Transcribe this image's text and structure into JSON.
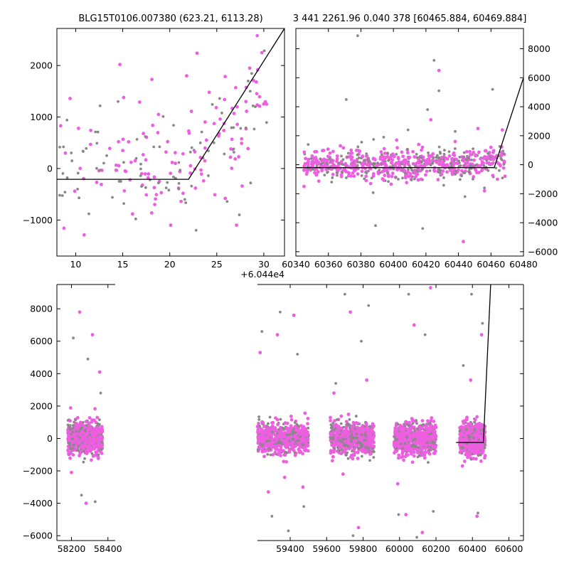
{
  "chart_data": [
    {
      "id": "top-left",
      "type": "scatter",
      "title": "BLG15T0106.007380 (623.21, 6113.28)",
      "xlim": [
        8,
        32.2
      ],
      "ylim": [
        -1700,
        2720
      ],
      "xticks": [
        "10",
        "15",
        "20",
        "25",
        "30"
      ],
      "xtick_values": [
        10,
        15,
        20,
        25,
        30
      ],
      "yticks": [
        "−1000",
        "0",
        "1000",
        "2000"
      ],
      "ytick_values": [
        -1000,
        0,
        1000,
        2000
      ],
      "x_offset_label": "+6.044e4",
      "series": [
        {
          "color": "#888888",
          "x": [
            8.3,
            8.7,
            9.1,
            9.6,
            10.2,
            10.8,
            11.4,
            12.1,
            12.6,
            13.3,
            13.9,
            14.5,
            15.1,
            16.9,
            17.4,
            17.9,
            18.3,
            18.8,
            19.3,
            19.9,
            20.4,
            21.1,
            21.6,
            22.2,
            22.8,
            23.4,
            24.1,
            24.7,
            25.3,
            26.1,
            26.8,
            27.4,
            28.1,
            28.6,
            29.1
          ],
          "y": [
            -520,
            420,
            -180,
            150,
            -400,
            330,
            -880,
            710,
            -30,
            250,
            -560,
            1300,
            120,
            -140,
            620,
            -220,
            420,
            -280,
            1010,
            -420,
            840,
            -30,
            -600,
            320,
            -1200,
            710,
            -140,
            500,
            1360,
            -640,
            380,
            -900,
            790,
            -280,
            1200
          ]
        },
        {
          "color": "#ee5ee0",
          "x": [
            8.4,
            8.9,
            9.4,
            9.9,
            10.3,
            10.9,
            11.6,
            14.7,
            15.1,
            16.8,
            17.2,
            17.7,
            18.1,
            18.4,
            18.8,
            19.1,
            19.6,
            20.1,
            20.6,
            21.2,
            21.8,
            22.3,
            22.9,
            23.6,
            24.2,
            24.8,
            25.2,
            25.9,
            26.5,
            27.1,
            27.7,
            28.1,
            28.5,
            28.9,
            29.3,
            29.8,
            30.3
          ],
          "y": [
            830,
            300,
            1360,
            -440,
            780,
            -1290,
            740,
            2020,
            1380,
            1290,
            680,
            -180,
            1730,
            -700,
            1050,
            -470,
            320,
            -1100,
            100,
            -640,
            1800,
            1110,
            2240,
            -240,
            1480,
            -510,
            630,
            -580,
            380,
            -1100,
            -340,
            1300,
            1950,
            1710,
            2580,
            2250,
            1250
          ]
        }
      ],
      "line": {
        "x": [
          8,
          22,
          32.2
        ],
        "y": [
          -210,
          -210,
          2720
        ]
      }
    },
    {
      "id": "top-right",
      "type": "scatter",
      "title": "3 441 2261.96 0.040 378 [60465.884, 60469.884]",
      "xlim": [
        60340,
        60480
      ],
      "ylim": [
        -6300,
        9400
      ],
      "xticks": [
        "60340",
        "60360",
        "60380",
        "60400",
        "60420",
        "60440",
        "60460",
        "60480"
      ],
      "xtick_values": [
        60340,
        60360,
        60380,
        60400,
        60420,
        60440,
        60460,
        60480
      ],
      "yticks": [
        "−6000",
        "−4000",
        "−2000",
        "0",
        "2000",
        "4000",
        "6000",
        "8000"
      ],
      "ytick_values": [
        -6000,
        -4000,
        -2000,
        0,
        2000,
        4000,
        6000,
        8000
      ],
      "series": [
        {
          "color": "#888888",
          "x": [
            60355,
            60362,
            60371,
            60378,
            60382,
            60389,
            60394,
            60403,
            60409,
            60418,
            60421,
            60425,
            60428,
            60431,
            60438,
            60444,
            60449,
            60456,
            60461
          ],
          "y": [
            400,
            -1200,
            4500,
            8900,
            300,
            -4200,
            1900,
            -1000,
            2400,
            -4400,
            3800,
            7200,
            5100,
            -900,
            2300,
            -2200,
            1100,
            -1600,
            5200
          ]
        },
        {
          "color": "#ee5ee0",
          "x": [
            60345,
            60350,
            60356,
            60361,
            60368,
            60374,
            60381,
            60386,
            60392,
            60397,
            60402,
            60407,
            60412,
            60417,
            60423,
            60428,
            60433,
            60438,
            60443,
            60447,
            60452,
            60456,
            60460,
            60464,
            60467
          ],
          "y": [
            -1500,
            600,
            -300,
            800,
            -700,
            1000,
            -200,
            -1300,
            400,
            -800,
            1700,
            -400,
            900,
            -1000,
            3100,
            6500,
            -500,
            1600,
            -5300,
            900,
            2500,
            -1800,
            1200,
            -1000,
            2400
          ]
        }
      ],
      "line": {
        "x": [
          60340,
          60462,
          60480
        ],
        "y": [
          -200,
          -200,
          6000
        ]
      }
    },
    {
      "id": "bottom",
      "type": "scatter",
      "xlim": [
        58120,
        60680
      ],
      "ylim": [
        -6300,
        9500
      ],
      "xticks": [
        "58200",
        "58400",
        "59400",
        "59600",
        "59800",
        "60000",
        "60200",
        "60400",
        "60600"
      ],
      "xtick_values": [
        58200,
        58400,
        59400,
        59600,
        59800,
        60000,
        60200,
        60400,
        60600
      ],
      "yticks": [
        "−6000",
        "−4000",
        "−2000",
        "0",
        "2000",
        "4000",
        "6000",
        "8000"
      ],
      "ytick_values": [
        -6000,
        -4000,
        -2000,
        0,
        2000,
        4000,
        6000,
        8000
      ],
      "axis_break": [
        58440,
        59220
      ],
      "seasons": [
        {
          "start": 58180,
          "end": 58370
        },
        {
          "start": 59220,
          "end": 59500
        },
        {
          "start": 59620,
          "end": 59860
        },
        {
          "start": 59970,
          "end": 60200
        },
        {
          "start": 60330,
          "end": 60470
        }
      ],
      "series": [
        {
          "color": "#888888",
          "x": [
            58210,
            58255,
            58290,
            58330,
            58360,
            59245,
            59300,
            59345,
            59390,
            59440,
            59475,
            59650,
            59700,
            59745,
            59790,
            59830,
            59995,
            60050,
            60095,
            60140,
            60185,
            60350,
            60395,
            60430,
            60455
          ],
          "y": [
            6200,
            -3500,
            4900,
            -3900,
            2800,
            6600,
            -4800,
            7800,
            -5700,
            5200,
            -4200,
            3400,
            8900,
            -6000,
            6000,
            8200,
            -4700,
            8900,
            -6100,
            6400,
            -4500,
            4500,
            8900,
            -4600,
            7100
          ]
        },
        {
          "color": "#ee5ee0",
          "x": [
            58200,
            58245,
            58280,
            58315,
            58355,
            59235,
            59280,
            59330,
            59370,
            59420,
            59470,
            59640,
            59690,
            59730,
            59775,
            59820,
            59990,
            60035,
            60080,
            60125,
            60170,
            60345,
            60390,
            60425,
            60450
          ],
          "y": [
            -2100,
            7800,
            -4000,
            6400,
            4100,
            5300,
            -3300,
            6400,
            -2400,
            7600,
            -3000,
            2800,
            -2200,
            7800,
            -5500,
            3600,
            -2800,
            -4700,
            7000,
            -5800,
            9300,
            -1700,
            3600,
            -4800,
            6400
          ]
        }
      ],
      "line": {
        "x": [
          60310,
          60460,
          60500
        ],
        "y": [
          -250,
          -250,
          9500
        ]
      }
    }
  ]
}
